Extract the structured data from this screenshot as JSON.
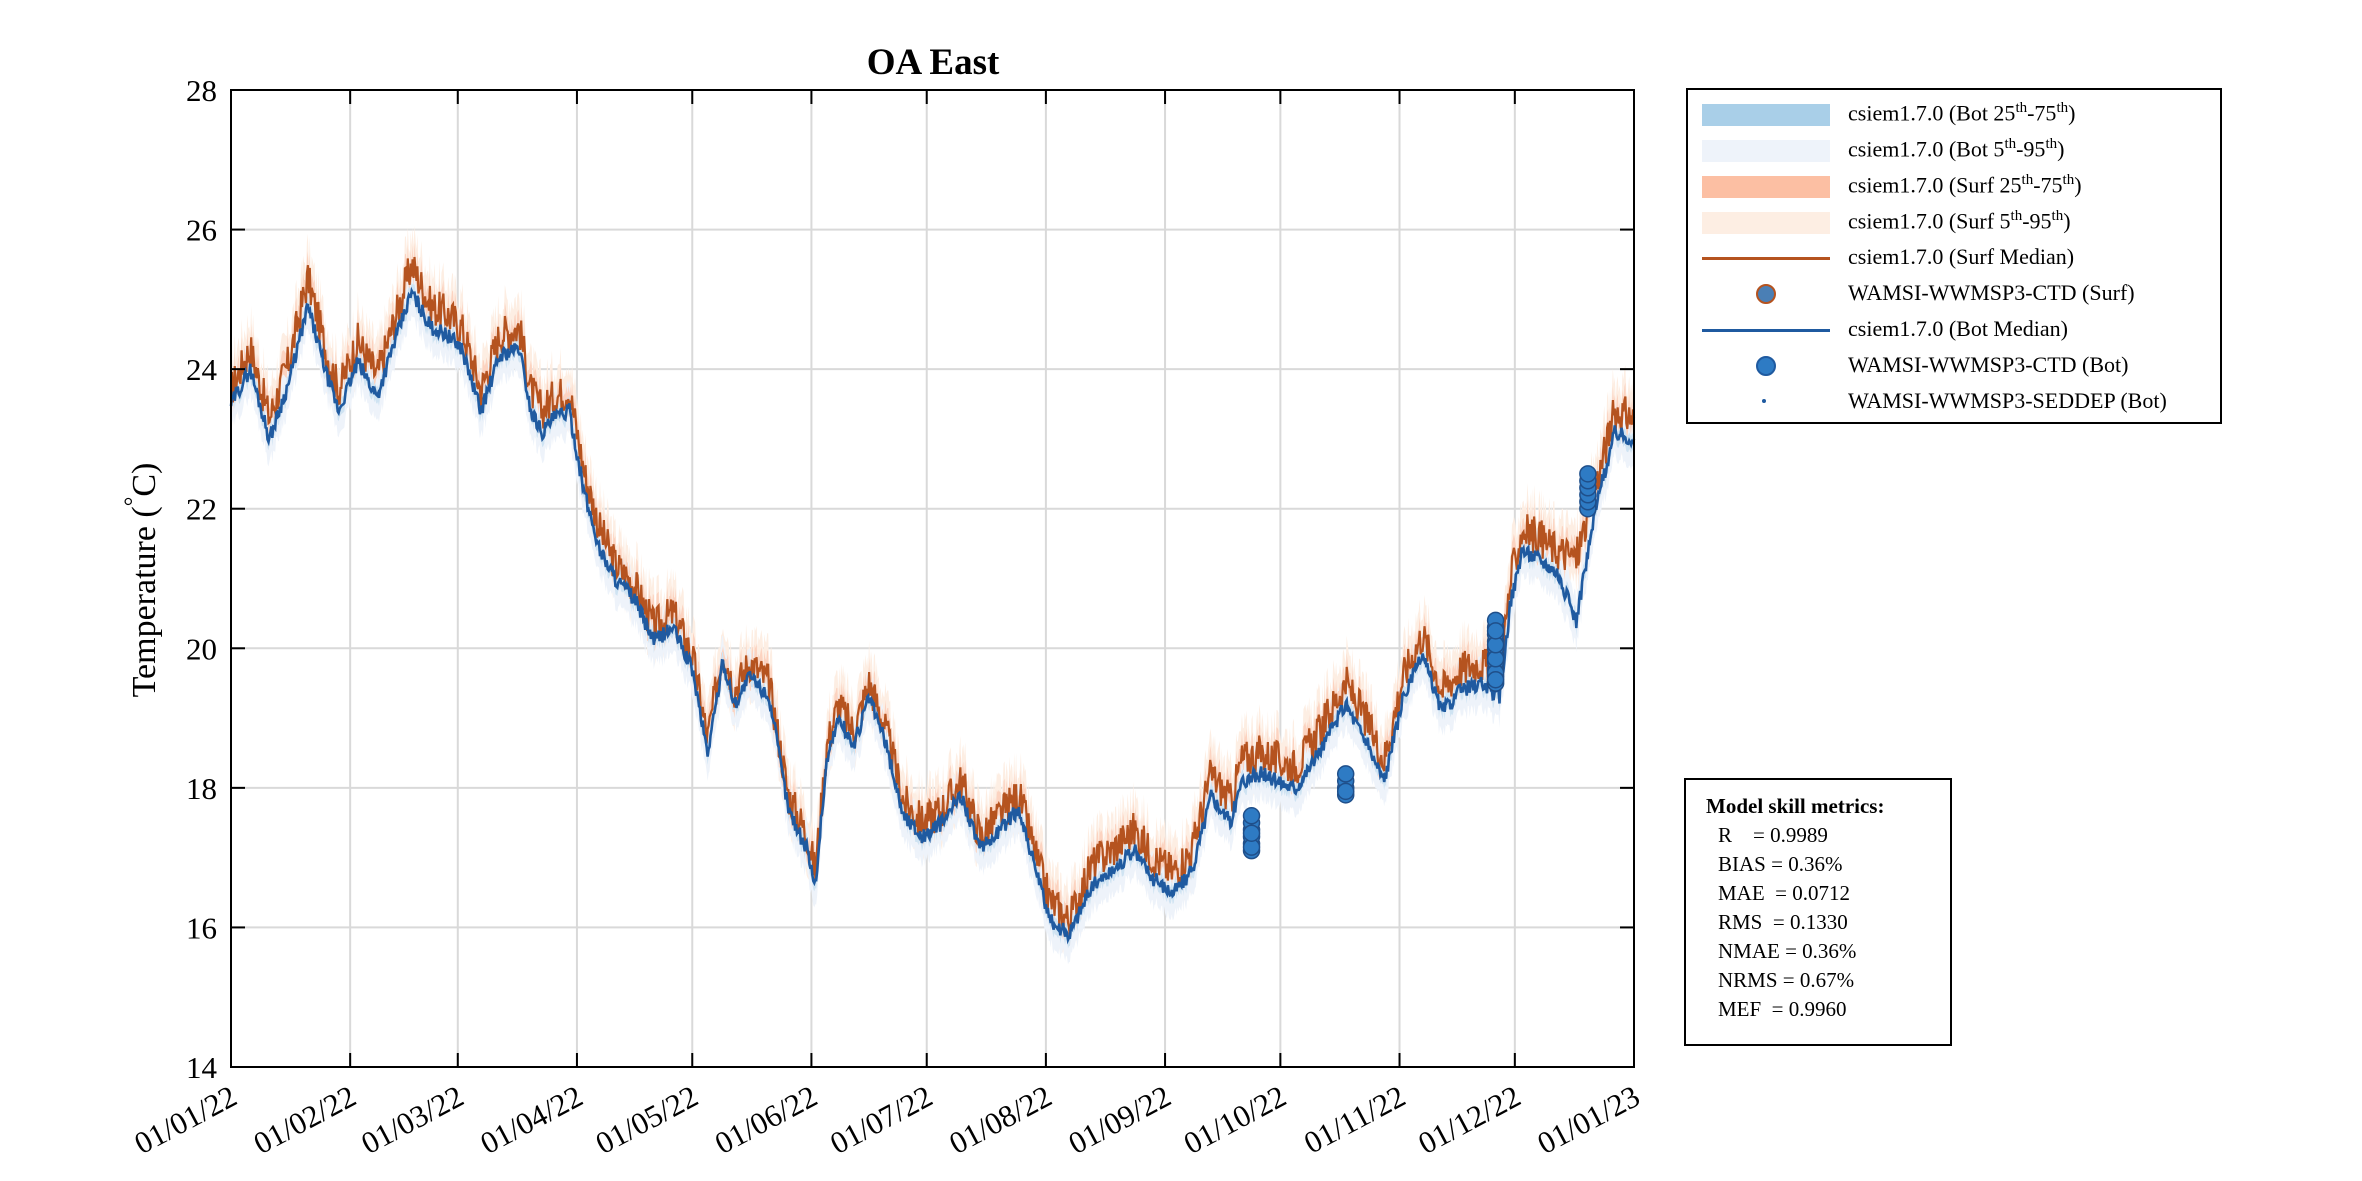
{
  "chart_data": {
    "type": "line",
    "title": "OA East",
    "xlabel": "",
    "ylabel": "Temperature (°C)",
    "ylabel_main": "Temperature (",
    "ylabel_degree": "°",
    "ylabel_unit": "C)",
    "ylim": [
      14,
      28
    ],
    "yticks": [
      14,
      16,
      18,
      20,
      22,
      24,
      26,
      28
    ],
    "xlim": [
      0,
      365
    ],
    "xtick_positions_days": [
      0,
      31,
      59,
      90,
      120,
      151,
      181,
      212,
      243,
      273,
      304,
      334,
      365
    ],
    "xtick_labels": [
      "01/01/22",
      "01/02/22",
      "01/03/22",
      "01/04/22",
      "01/05/22",
      "01/06/22",
      "01/07/22",
      "01/08/22",
      "01/09/22",
      "01/10/22",
      "01/11/22",
      "01/12/22",
      "01/01/23"
    ],
    "grid": true,
    "x_units": "day of year 2022",
    "series": [
      {
        "name": "csiem1.7.0 (Surf Median)",
        "color": "#b5531f",
        "x": [
          0,
          5,
          10,
          15,
          20,
          25,
          28,
          33,
          38,
          42,
          47,
          52,
          56,
          60,
          65,
          70,
          75,
          78,
          81,
          84,
          88,
          92,
          96,
          100,
          105,
          110,
          115,
          120,
          124,
          128,
          131,
          135,
          140,
          145,
          150,
          152,
          155,
          158,
          162,
          166,
          170,
          175,
          180,
          185,
          190,
          195,
          200,
          205,
          210,
          213,
          218,
          224,
          229,
          235,
          240,
          245,
          250,
          255,
          260,
          263,
          268,
          272,
          277,
          283,
          290,
          295,
          300,
          305,
          310,
          315,
          320,
          325,
          330,
          333,
          336,
          340,
          345,
          350,
          355,
          360,
          365
        ],
        "values": [
          23.7,
          24.3,
          23.3,
          24.1,
          25.3,
          24.2,
          23.7,
          24.4,
          23.9,
          24.6,
          25.5,
          24.9,
          24.8,
          24.6,
          23.7,
          24.5,
          24.6,
          23.7,
          23.4,
          23.6,
          23.7,
          22.5,
          21.7,
          21.2,
          20.9,
          20.3,
          20.5,
          19.9,
          18.7,
          20.0,
          19.4,
          19.8,
          19.5,
          17.9,
          17.3,
          16.8,
          18.6,
          19.2,
          18.8,
          19.5,
          18.9,
          17.8,
          17.5,
          17.7,
          18.1,
          17.3,
          17.6,
          17.9,
          16.9,
          16.4,
          16.1,
          16.9,
          17.1,
          17.4,
          17.0,
          16.8,
          17.1,
          18.2,
          17.8,
          18.4,
          18.5,
          18.4,
          18.3,
          18.8,
          19.5,
          19.0,
          18.4,
          19.6,
          20.2,
          19.4,
          19.7,
          19.8,
          19.6,
          21.0,
          21.7,
          21.6,
          21.4,
          21.3,
          22.3,
          23.4,
          23.3
        ]
      },
      {
        "name": "csiem1.7.0 (Bot Median)",
        "color": "#1f5aa0",
        "x": [
          0,
          5,
          10,
          15,
          20,
          25,
          28,
          33,
          38,
          42,
          47,
          52,
          56,
          60,
          65,
          70,
          75,
          78,
          81,
          84,
          88,
          92,
          96,
          100,
          105,
          110,
          115,
          120,
          124,
          128,
          131,
          135,
          140,
          145,
          150,
          152,
          155,
          158,
          162,
          166,
          170,
          175,
          180,
          185,
          190,
          195,
          200,
          205,
          210,
          213,
          218,
          224,
          229,
          235,
          240,
          245,
          250,
          255,
          260,
          263,
          268,
          272,
          277,
          283,
          290,
          295,
          300,
          305,
          310,
          315,
          320,
          325,
          330,
          333,
          336,
          340,
          345,
          350,
          355,
          360,
          365
        ],
        "values": [
          23.5,
          24.0,
          23.0,
          23.8,
          24.9,
          23.9,
          23.4,
          24.1,
          23.6,
          24.3,
          25.1,
          24.6,
          24.5,
          24.3,
          23.4,
          24.2,
          24.3,
          23.4,
          23.1,
          23.3,
          23.4,
          22.2,
          21.4,
          21.0,
          20.7,
          20.1,
          20.3,
          19.7,
          18.5,
          19.8,
          19.2,
          19.6,
          19.3,
          17.7,
          17.1,
          16.6,
          18.4,
          19.0,
          18.6,
          19.3,
          18.7,
          17.6,
          17.3,
          17.5,
          17.9,
          17.1,
          17.4,
          17.7,
          16.7,
          16.1,
          15.9,
          16.6,
          16.8,
          17.1,
          16.7,
          16.5,
          16.8,
          17.9,
          17.5,
          18.1,
          18.2,
          18.1,
          18.0,
          18.5,
          19.2,
          18.7,
          18.1,
          19.3,
          19.9,
          19.1,
          19.4,
          19.5,
          19.3,
          20.7,
          21.4,
          21.3,
          21.1,
          20.4,
          22.0,
          23.1,
          23.0
        ]
      }
    ],
    "ctd_bot_obs": {
      "name": "WAMSI-WWMSP3-CTD (Bot)",
      "color": "#2e7bc4",
      "x": [
        265.5,
        265.5,
        265.5,
        265.5,
        265.5,
        265.5,
        265.5,
        265.5,
        290,
        290,
        290,
        290,
        290,
        329,
        329,
        329,
        329,
        329,
        329,
        329,
        329,
        329,
        329,
        329,
        329,
        329,
        329,
        329,
        353,
        353,
        353,
        353,
        353,
        353
      ],
      "y": [
        17.1,
        17.2,
        17.3,
        17.4,
        17.5,
        17.6,
        17.15,
        17.35,
        17.9,
        18.0,
        18.1,
        18.2,
        17.95,
        19.5,
        19.6,
        19.7,
        19.8,
        19.9,
        20.0,
        20.1,
        20.2,
        20.3,
        20.4,
        19.65,
        19.85,
        20.05,
        20.25,
        19.55,
        22.0,
        22.1,
        22.2,
        22.3,
        22.4,
        22.5
      ]
    },
    "legend_position": "outside-top-right",
    "legend": [
      {
        "kind": "patch",
        "color": "#a9cfe8",
        "text": "csiem1.7.0 (Bot 25",
        "sup1": "th",
        "mid": "-75",
        "sup2": "th",
        "end": ")"
      },
      {
        "kind": "patch",
        "color": "#eef3fa",
        "text": "csiem1.7.0 (Bot 5",
        "sup1": "th",
        "mid": "-95",
        "sup2": "th",
        "end": ")"
      },
      {
        "kind": "patch",
        "color": "#fcbfa3",
        "text": "csiem1.7.0 (Surf 25",
        "sup1": "th",
        "mid": "-75",
        "sup2": "th",
        "end": ")"
      },
      {
        "kind": "patch",
        "color": "#fdeee3",
        "text": "csiem1.7.0 (Surf 5",
        "sup1": "th",
        "mid": "-95",
        "sup2": "th",
        "end": ")"
      },
      {
        "kind": "line",
        "color": "#b5531f",
        "text": "csiem1.7.0 (Surf Median)"
      },
      {
        "kind": "marker",
        "color": "#4a7fb5",
        "edge": "#b5531f",
        "text": "WAMSI-WWMSP3-CTD (Surf)"
      },
      {
        "kind": "line",
        "color": "#1f5aa0",
        "text": "csiem1.7.0 (Bot Median)"
      },
      {
        "kind": "marker",
        "color": "#2e7bc4",
        "edge": "#1f5aa0",
        "text": "WAMSI-WWMSP3-CTD (Bot)"
      },
      {
        "kind": "dot",
        "color": "#1f5aa0",
        "text": "WAMSI-WWMSP3-SEDDEP (Bot)"
      }
    ],
    "metrics": {
      "title": "Model skill metrics:",
      "rows": [
        "R    = 0.9989",
        "BIAS = 0.36%",
        "MAE  = 0.0712",
        "RMS  = 0.1330",
        "NMAE = 0.36%",
        "NRMS = 0.67%",
        "MEF  = 0.9960"
      ]
    }
  }
}
